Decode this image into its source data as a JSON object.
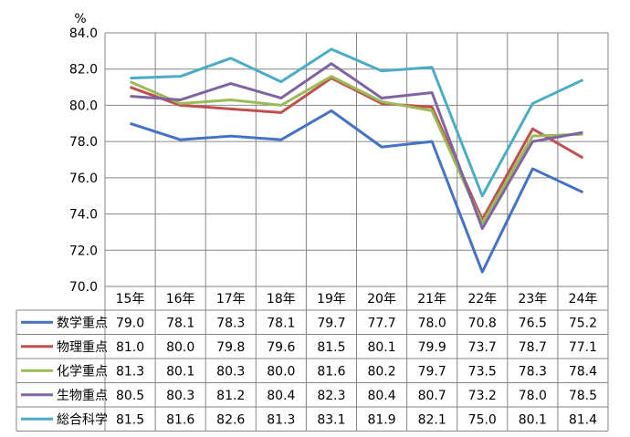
{
  "chart_data": {
    "type": "line",
    "ylabel": "%",
    "ylim": [
      70.0,
      84.0
    ],
    "yticks": [
      "84.0",
      "82.0",
      "80.0",
      "78.0",
      "76.0",
      "74.0",
      "72.0",
      "70.0"
    ],
    "categories": [
      "15年",
      "16年",
      "17年",
      "18年",
      "19年",
      "20年",
      "21年",
      "22年",
      "23年",
      "24年"
    ],
    "grid": true,
    "legend": "data-table-below",
    "series": [
      {
        "name": "数学重点",
        "color": "#4472C4",
        "values": [
          79.0,
          78.1,
          78.3,
          78.1,
          79.7,
          77.7,
          78.0,
          70.8,
          76.5,
          75.2
        ]
      },
      {
        "name": "物理重点",
        "color": "#C0504D",
        "values": [
          81.0,
          80.0,
          79.8,
          79.6,
          81.5,
          80.1,
          79.9,
          73.7,
          78.7,
          77.1
        ]
      },
      {
        "name": "化学重点",
        "color": "#9BBB59",
        "values": [
          81.3,
          80.1,
          80.3,
          80.0,
          81.6,
          80.2,
          79.7,
          73.5,
          78.3,
          78.4
        ]
      },
      {
        "name": "生物重点",
        "color": "#8064A2",
        "values": [
          80.5,
          80.3,
          81.2,
          80.4,
          82.3,
          80.4,
          80.7,
          73.2,
          78.0,
          78.5
        ]
      },
      {
        "name": "総合科学",
        "color": "#4BACC6",
        "values": [
          81.5,
          81.6,
          82.6,
          81.3,
          83.1,
          81.9,
          82.1,
          75.0,
          80.1,
          81.4
        ]
      }
    ]
  }
}
